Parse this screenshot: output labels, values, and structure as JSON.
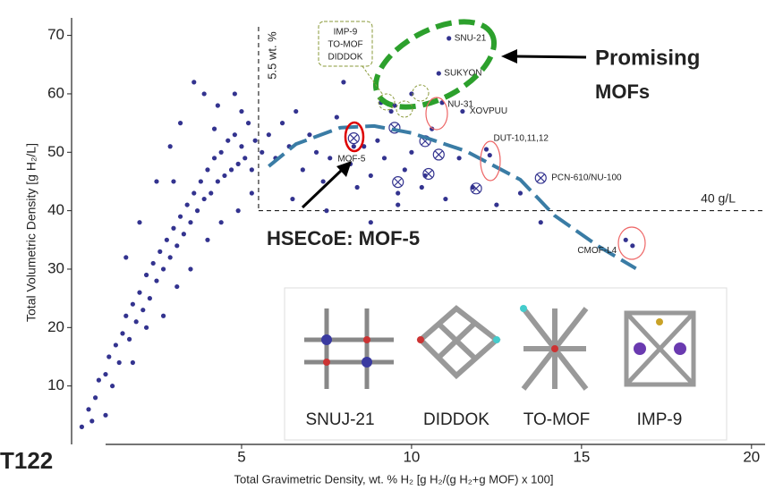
{
  "chart_data": {
    "type": "scatter",
    "xlabel": "Total Gravimetric Density, wt. % H₂ [g H₂/(g H₂+g MOF) x 100]",
    "ylabel": "Total Volumetric  Density [g H₂/L]",
    "xlim": [
      0,
      20.4
    ],
    "ylim": [
      0,
      73
    ],
    "xticks": [
      5,
      10,
      15,
      20
    ],
    "yticks": [
      10,
      20,
      30,
      40,
      50,
      60,
      70
    ],
    "series": [
      {
        "color": "#33338f",
        "x": [
          0.3,
          0.5,
          0.7,
          0.8,
          1.0,
          1.1,
          1.2,
          1.3,
          1.4,
          1.5,
          1.6,
          1.7,
          1.8,
          1.9,
          2.0,
          2.1,
          2.2,
          2.3,
          2.4,
          2.5,
          2.6,
          2.7,
          2.8,
          2.9,
          3.0,
          3.1,
          3.2,
          3.3,
          3.4,
          3.5,
          3.6,
          3.7,
          3.8,
          3.9,
          4.0,
          4.1,
          4.2,
          4.3,
          4.4,
          4.5,
          4.6,
          4.7,
          4.8,
          4.9,
          5.0,
          5.1,
          5.2,
          5.3,
          5.4,
          5.6,
          3.6,
          3.9,
          3.2,
          2.9,
          4.3,
          4.8,
          5.0,
          2.5,
          2.0,
          1.6,
          5.8,
          6.0,
          6.2,
          6.4,
          6.6,
          6.8,
          7.0,
          7.2,
          7.4,
          7.6,
          7.8,
          8.0,
          8.2,
          8.4,
          8.6,
          8.8,
          9.0,
          9.2,
          9.4,
          9.6,
          9.8,
          10.0,
          10.3,
          10.6,
          11.0,
          11.4,
          11.8,
          12.5,
          13.2,
          13.8,
          7.5,
          6.5,
          8.8,
          9.6,
          10.4,
          11.1,
          10.8,
          11.5,
          12.2,
          16.3,
          16.5,
          8.3,
          9.1,
          9.5,
          10.0,
          10.9,
          12.3,
          1.0,
          0.6,
          1.8,
          2.2,
          2.7,
          3.1,
          3.5,
          4.0,
          4.4,
          4.9,
          5.3,
          3.0,
          4.2
        ],
        "y": [
          3,
          6,
          8,
          11,
          12,
          15,
          10,
          17,
          14,
          19,
          22,
          18,
          24,
          21,
          26,
          23,
          29,
          25,
          31,
          28,
          33,
          30,
          35,
          32,
          37,
          34,
          39,
          36,
          41,
          38,
          43,
          40,
          45,
          42,
          47,
          43,
          49,
          45,
          50,
          46,
          52,
          47,
          53,
          48,
          51,
          49,
          55,
          47,
          52,
          50,
          62,
          60,
          55,
          51,
          58,
          60,
          57,
          45,
          38,
          32,
          53,
          49,
          55,
          51,
          57,
          47,
          53,
          50,
          45,
          49,
          56,
          62,
          48,
          44,
          51,
          46,
          52,
          49,
          57,
          43,
          47,
          50,
          44,
          54,
          42,
          49,
          44,
          41,
          43,
          38,
          40,
          42,
          38,
          41,
          46,
          69.5,
          63.5,
          57,
          50.5,
          35,
          34,
          51,
          58.5,
          58,
          60,
          58.5,
          49.5,
          5,
          4,
          14,
          20,
          22,
          27,
          30,
          35,
          38,
          40,
          43,
          45,
          54
        ]
      },
      {
        "color": "#33338f",
        "marker": "circle-x",
        "x": [
          8.3,
          9.5,
          10.4,
          10.8,
          9.6,
          10.5,
          11.9,
          13.8
        ],
        "y": [
          52.4,
          54.2,
          51.9,
          49.6,
          44.9,
          46.3,
          43.8,
          45.6
        ]
      }
    ],
    "trend": {
      "color": "#3a7ca5",
      "x": [
        5.8,
        6.6,
        7.9,
        8.9,
        10,
        11.6,
        13.2,
        14.2,
        15.5,
        16.6
      ],
      "y": [
        47.6,
        51.4,
        54.2,
        54.5,
        53.3,
        50.2,
        45.3,
        39.2,
        33.9,
        30.1
      ]
    },
    "vline": {
      "value": 5.5,
      "label": "5.5 wt. %"
    },
    "hline": {
      "value": 40,
      "label": "40 g/L"
    },
    "point_labels": [
      {
        "label": "SNU-21",
        "x": 11.1,
        "y": 69.5
      },
      {
        "label": "SUKYON",
        "x": 10.8,
        "y": 63.5
      },
      {
        "label": "NU-31",
        "x": 10.9,
        "y": 58.5
      },
      {
        "label": "XOVPUU",
        "x": 11.5,
        "y": 57
      },
      {
        "label": "DUT-10,11,12",
        "x": 12.2,
        "y": 50.5
      },
      {
        "label": "PCN-610/NU-100",
        "x": 13.8,
        "y": 45.6
      },
      {
        "label": "CMOF-L4",
        "x": 16.3,
        "y": 35
      },
      {
        "label": "MOF-5",
        "x": 8.3,
        "y": 51
      }
    ],
    "callout_box": [
      "IMP-9",
      "TO-MOF",
      "DIDDOK"
    ],
    "promising": [
      "Promising",
      "MOFs"
    ],
    "hsecoe": "HSECoE: MOF-5",
    "structures": [
      "SNUJ-21",
      "DIDDOK",
      "TO-MOF",
      "IMP-9"
    ],
    "corner_label": "T122"
  }
}
